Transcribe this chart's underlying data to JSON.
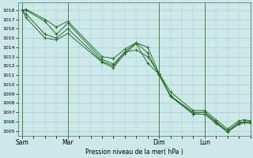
{
  "background_color": "#cce8e8",
  "grid_color": "#aacece",
  "line_color": "#2d6e2d",
  "xlabel_text": "Pression niveau de la mer( hPa )",
  "ylim": [
    1004.5,
    1018.8
  ],
  "yticks": [
    1005,
    1006,
    1007,
    1008,
    1009,
    1010,
    1011,
    1012,
    1013,
    1014,
    1015,
    1016,
    1017,
    1018
  ],
  "xtick_labels": [
    "Sam",
    "Mar",
    "Dim",
    "Lun"
  ],
  "xtick_positions": [
    0,
    24,
    72,
    96
  ],
  "xlim": [
    -2,
    120
  ],
  "vlines": [
    0,
    24,
    72,
    96
  ],
  "series": [
    {
      "x": [
        0,
        2,
        12,
        18,
        24,
        42,
        48,
        54,
        60,
        66,
        72,
        78,
        90,
        96,
        102,
        108,
        114,
        117,
        120
      ],
      "y": [
        1018.0,
        1018.1,
        1017.0,
        1016.2,
        1016.8,
        1013.0,
        1012.8,
        1013.8,
        1014.5,
        1014.0,
        1011.2,
        1009.2,
        1007.2,
        1007.2,
        1006.2,
        1005.2,
        1006.1,
        1006.2,
        1006.1
      ]
    },
    {
      "x": [
        0,
        2,
        12,
        18,
        24,
        42,
        48,
        54,
        60,
        66,
        72,
        78,
        90,
        96,
        102,
        108,
        114,
        117,
        120
      ],
      "y": [
        1018.0,
        1018.0,
        1016.8,
        1015.4,
        1016.6,
        1012.7,
        1012.2,
        1013.5,
        1013.7,
        1013.0,
        1011.2,
        1008.8,
        1007.0,
        1007.0,
        1006.0,
        1005.0,
        1005.9,
        1006.0,
        1006.0
      ]
    },
    {
      "x": [
        0,
        2,
        12,
        18,
        24,
        42,
        48,
        54,
        60,
        66,
        72,
        78,
        90,
        96,
        102,
        108,
        114,
        117,
        120
      ],
      "y": [
        1018.0,
        1017.6,
        1015.4,
        1015.0,
        1016.0,
        1012.5,
        1012.0,
        1013.5,
        1014.5,
        1013.4,
        1011.0,
        1008.8,
        1006.9,
        1007.0,
        1005.9,
        1004.9,
        1005.8,
        1005.9,
        1005.9
      ]
    },
    {
      "x": [
        0,
        2,
        12,
        18,
        24,
        42,
        48,
        54,
        60,
        66,
        72,
        78,
        90,
        96,
        102,
        108,
        114,
        117,
        120
      ],
      "y": [
        1018.0,
        1017.2,
        1015.0,
        1014.8,
        1015.5,
        1012.4,
        1011.8,
        1013.3,
        1014.4,
        1012.3,
        1011.1,
        1008.7,
        1006.8,
        1006.8,
        1005.8,
        1004.9,
        1005.7,
        1005.9,
        1005.8
      ]
    }
  ]
}
